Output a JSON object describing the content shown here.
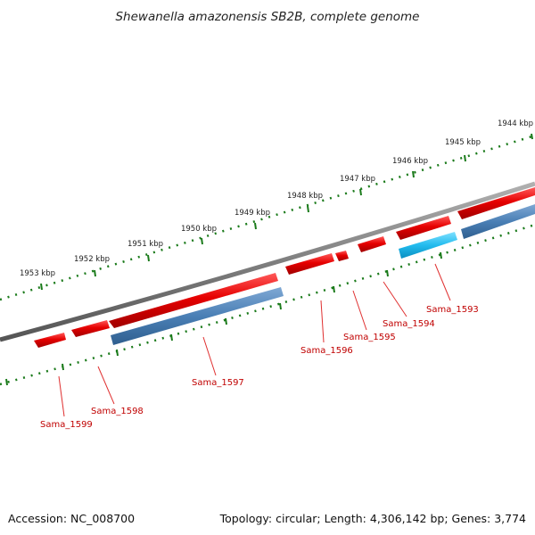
{
  "title": "Shewanella amazonensis SB2B, complete genome",
  "footer": {
    "accession": "Accession: NC_008700",
    "summary": "Topology: circular; Length: 4,306,142 bp; Genes: 3,774"
  },
  "kbp_labels": [
    "1944 kbp",
    "1945 kbp",
    "1946 kbp",
    "1947 kbp",
    "1948 kbp",
    "1949 kbp",
    "1950 kbp",
    "1951 kbp",
    "1952 kbp",
    "1953 kbp"
  ],
  "gene_labels": [
    "Sama_1593",
    "Sama_1594",
    "Sama_1595",
    "Sama_1596",
    "Sama_1597",
    "Sama_1598",
    "Sama_1599"
  ],
  "colors": {
    "gene_arrow": "#e60000",
    "cds_bar": "#4a7fb5",
    "cds_highlight": "#22bbee",
    "backbone": "#7f7f7f",
    "ticks": "#1a7a1a",
    "gene_label": "#c00000"
  }
}
